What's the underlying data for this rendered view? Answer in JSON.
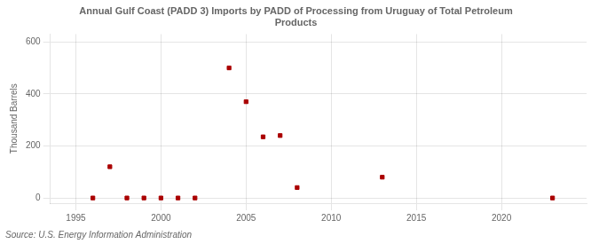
{
  "chart_data": {
    "type": "scatter",
    "title": "Annual Gulf Coast (PADD 3) Imports by PADD of Processing from Uruguay of Total Petroleum\nProducts",
    "ylabel": "Thousand Barrels",
    "source": "Source: U.S. Energy Information Administration",
    "x": [
      1996,
      1997,
      1998,
      1999,
      2000,
      2001,
      2002,
      2004,
      2005,
      2006,
      2007,
      2008,
      2013,
      2023
    ],
    "values": [
      0,
      120,
      0,
      0,
      0,
      0,
      0,
      500,
      370,
      235,
      240,
      40,
      80,
      0
    ],
    "color": "#aa0000",
    "marker": "square",
    "xlim": [
      1993.5,
      2025
    ],
    "xticks": [
      1995,
      2000,
      2005,
      2010,
      2015,
      2020
    ],
    "ylim": [
      -20,
      630
    ],
    "yticks": [
      0,
      200,
      400,
      600
    ],
    "grid": true
  }
}
